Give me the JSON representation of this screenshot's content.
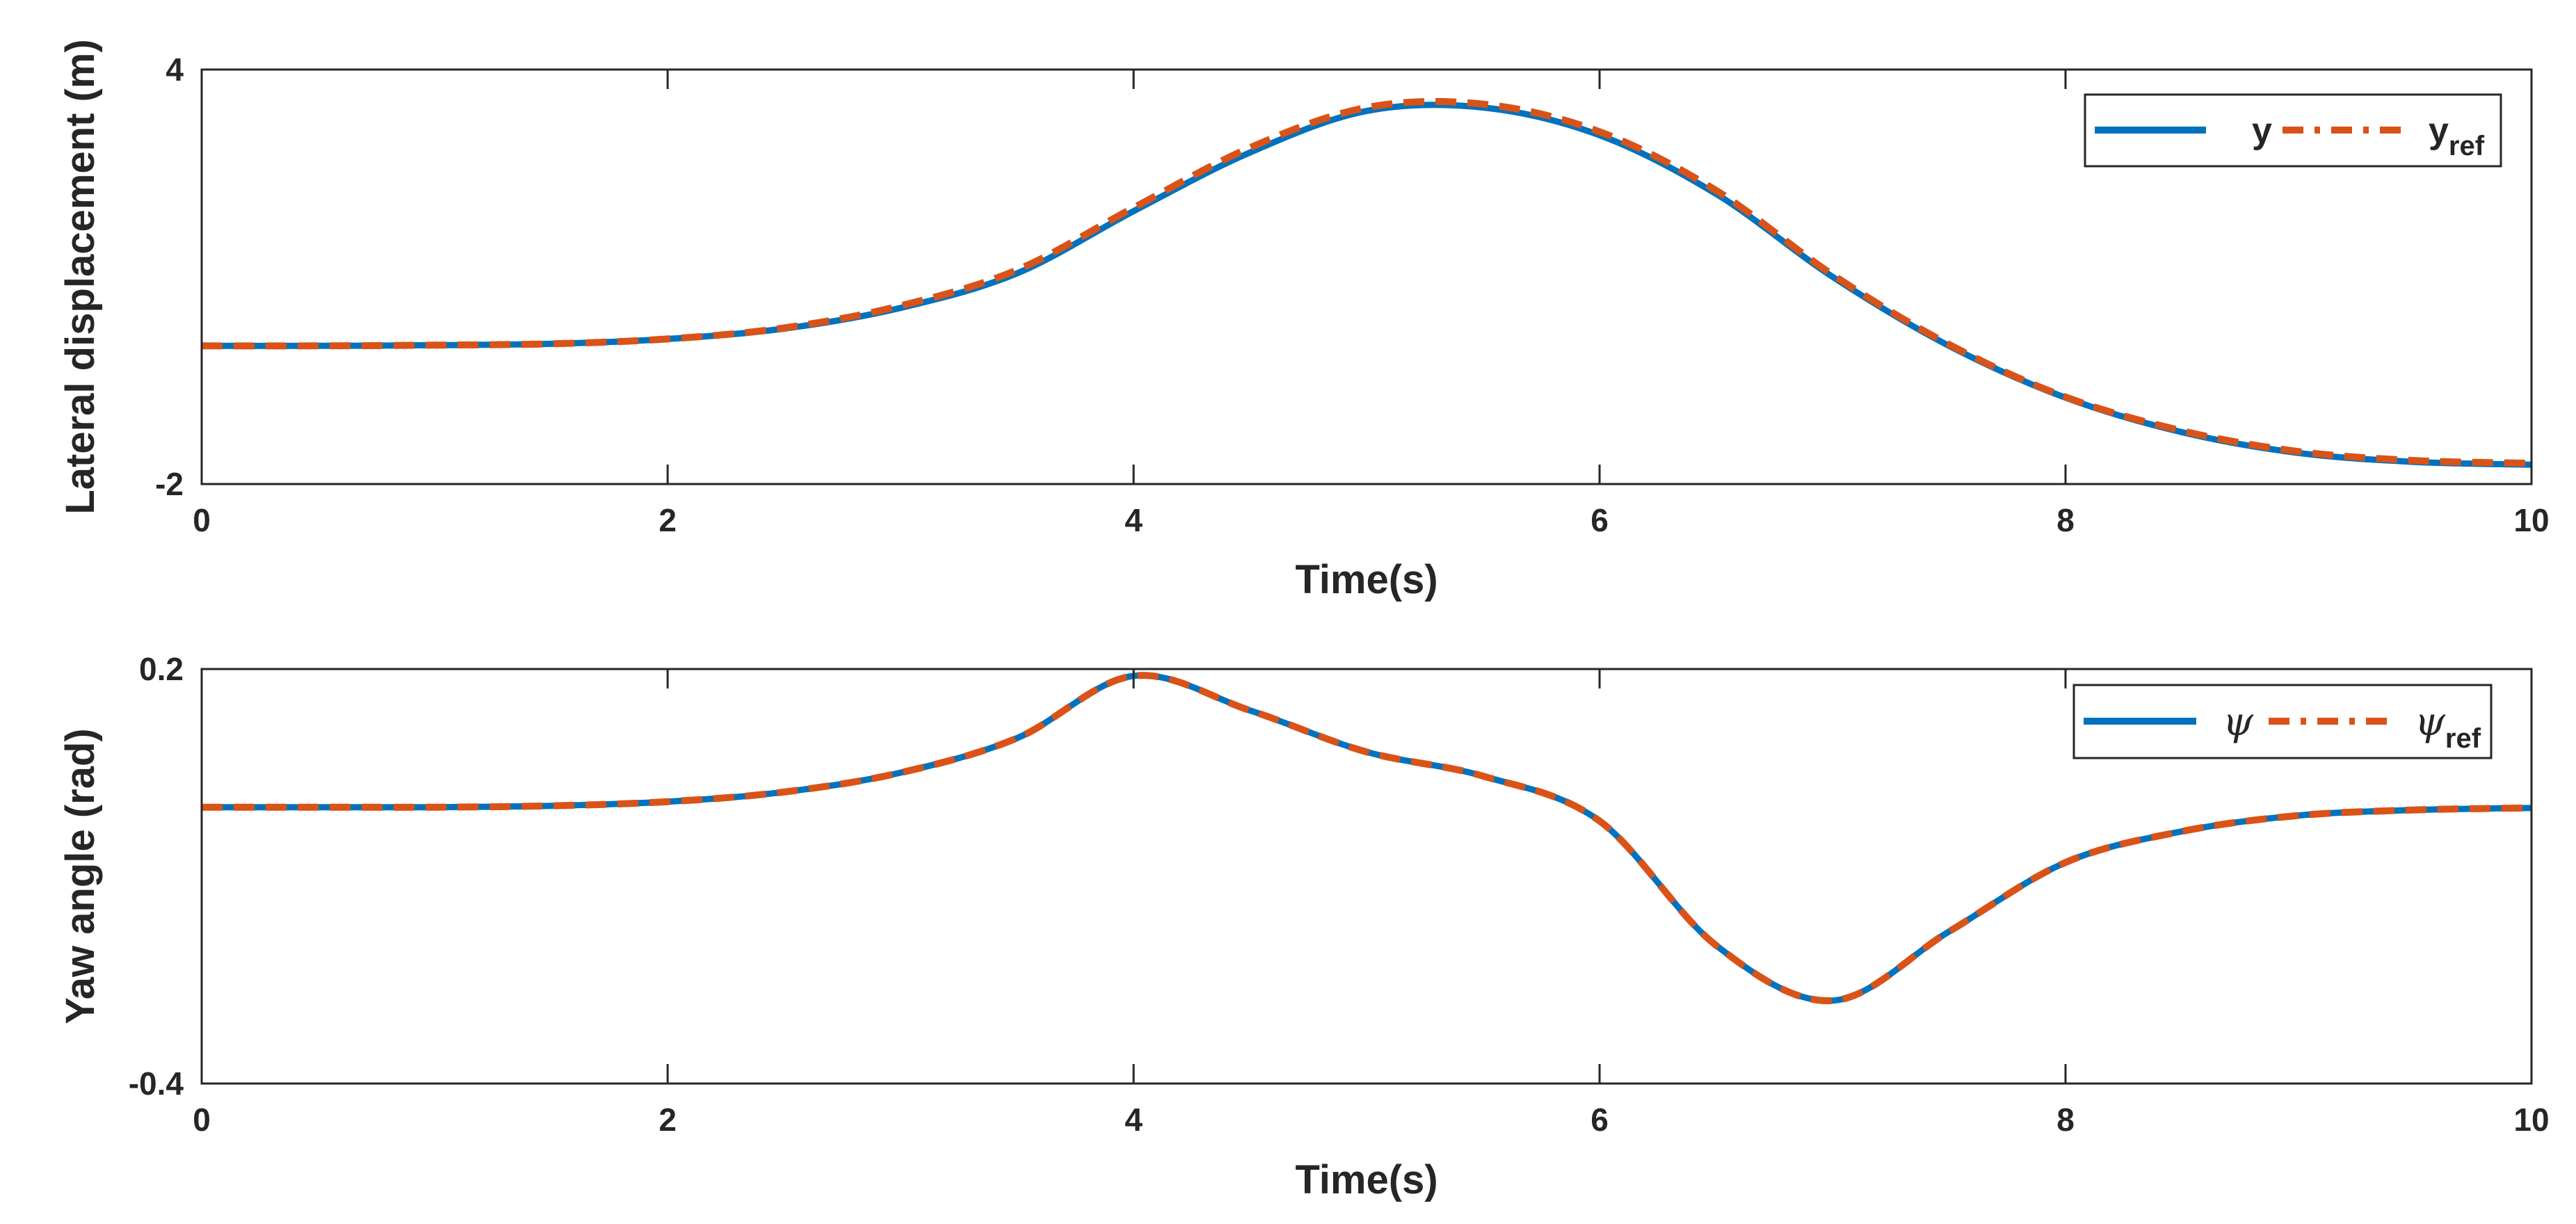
{
  "chart_data": [
    {
      "type": "line",
      "xlabel": "Time(s)",
      "ylabel": "Lateral displacement (m)",
      "xlim": [
        0,
        10
      ],
      "ylim": [
        -2,
        4
      ],
      "x_ticks": [
        "0",
        "2",
        "4",
        "6",
        "8",
        "10"
      ],
      "y_ticks": [
        "-2",
        "4"
      ],
      "legend_position": "top-right",
      "grid": false,
      "x": [
        0,
        0.5,
        1,
        1.5,
        2,
        2.5,
        3,
        3.5,
        4,
        4.5,
        5,
        5.5,
        6,
        6.5,
        7,
        7.5,
        8,
        8.5,
        9,
        9.5,
        10
      ],
      "series": [
        {
          "name": "y",
          "color": "#0072BD",
          "style": "solid",
          "values": [
            0.0,
            0.0,
            0.01,
            0.03,
            0.1,
            0.25,
            0.55,
            1.05,
            1.95,
            2.8,
            3.4,
            3.45,
            3.05,
            2.2,
            1.0,
            0.0,
            -0.75,
            -1.25,
            -1.55,
            -1.68,
            -1.72
          ]
        },
        {
          "name": "y_ref",
          "color": "#D95319",
          "style": "dashed",
          "values": [
            0.0,
            0.0,
            0.01,
            0.03,
            0.1,
            0.26,
            0.58,
            1.1,
            2.0,
            2.87,
            3.45,
            3.5,
            3.1,
            2.25,
            1.03,
            0.02,
            -0.74,
            -1.23,
            -1.53,
            -1.66,
            -1.7
          ]
        }
      ],
      "legend_labels": {
        "main": "y",
        "ref_main": "y",
        "ref_sub": "ref"
      }
    },
    {
      "type": "line",
      "xlabel": "Time(s)",
      "ylabel": "Yaw angle (rad)",
      "xlim": [
        0,
        10
      ],
      "ylim": [
        -0.4,
        0.2
      ],
      "x_ticks": [
        "0",
        "2",
        "4",
        "6",
        "8",
        "10"
      ],
      "y_ticks": [
        "-0.4",
        "0.2"
      ],
      "legend_position": "top-right",
      "grid": false,
      "x": [
        0,
        0.5,
        1,
        1.5,
        2,
        2.5,
        3,
        3.5,
        4,
        4.5,
        5,
        5.5,
        6,
        6.5,
        7,
        7.5,
        8,
        8.5,
        9,
        9.5,
        10
      ],
      "series": [
        {
          "name": "ψ",
          "color": "#0072BD",
          "style": "solid",
          "values": [
            0.0,
            0.0,
            0.0,
            0.002,
            0.008,
            0.022,
            0.05,
            0.1,
            0.19,
            0.14,
            0.08,
            0.045,
            -0.02,
            -0.2,
            -0.28,
            -0.18,
            -0.08,
            -0.035,
            -0.012,
            -0.004,
            -0.001
          ]
        },
        {
          "name": "ψ_ref",
          "color": "#D95319",
          "style": "dashed",
          "values": [
            0.0,
            0.0,
            0.0,
            0.002,
            0.008,
            0.022,
            0.05,
            0.1,
            0.19,
            0.14,
            0.08,
            0.045,
            -0.02,
            -0.2,
            -0.28,
            -0.18,
            -0.08,
            -0.035,
            -0.012,
            -0.004,
            -0.001
          ]
        }
      ],
      "legend_labels": {
        "main": "ψ",
        "ref_main": "ψ",
        "ref_sub": "ref"
      }
    }
  ]
}
